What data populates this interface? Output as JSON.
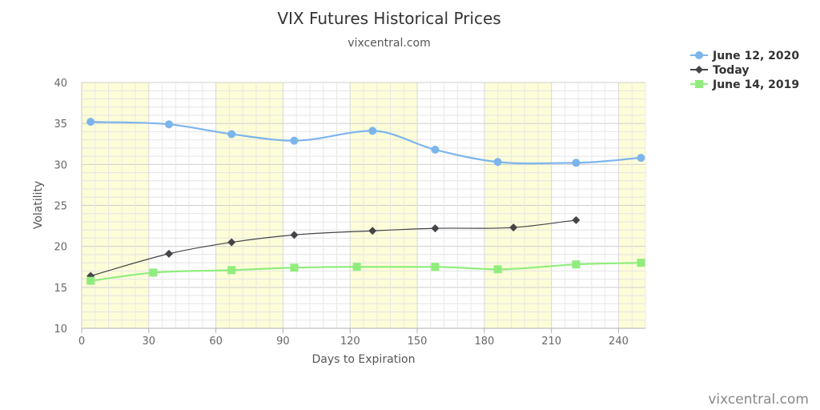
{
  "chart_data": {
    "type": "line",
    "title": "VIX Futures Historical Prices",
    "subtitle": "vixcentral.com",
    "xlabel": "Days to Expiration",
    "ylabel": "Volatility",
    "xlim": [
      0,
      252
    ],
    "ylim": [
      10,
      40
    ],
    "x_ticks": [
      0,
      30,
      60,
      90,
      120,
      150,
      180,
      210,
      240
    ],
    "y_ticks": [
      10,
      15,
      20,
      25,
      30,
      35,
      40
    ],
    "shaded_bands": [
      [
        0,
        30
      ],
      [
        60,
        90
      ],
      [
        120,
        150
      ],
      [
        180,
        210
      ],
      [
        240,
        252
      ]
    ],
    "legend_position": "top-right",
    "series": [
      {
        "name": "June 12, 2020",
        "color": "#7cb5ec",
        "marker": "circle",
        "points": [
          [
            4,
            35.2
          ],
          [
            39,
            34.9
          ],
          [
            67,
            33.7
          ],
          [
            95,
            32.9
          ],
          [
            130,
            34.1
          ],
          [
            158,
            31.8
          ],
          [
            186,
            30.3
          ],
          [
            221,
            30.2
          ],
          [
            250,
            30.8
          ]
        ]
      },
      {
        "name": "Today",
        "color": "#434348",
        "marker": "diamond",
        "points": [
          [
            4,
            16.4
          ],
          [
            39,
            19.1
          ],
          [
            67,
            20.5
          ],
          [
            95,
            21.4
          ],
          [
            130,
            21.9
          ],
          [
            158,
            22.2
          ],
          [
            193,
            22.3
          ],
          [
            221,
            23.2
          ]
        ]
      },
      {
        "name": "June 14, 2019",
        "color": "#90ed7d",
        "marker": "square",
        "points": [
          [
            4,
            15.8
          ],
          [
            32,
            16.8
          ],
          [
            67,
            17.1
          ],
          [
            95,
            17.4
          ],
          [
            123,
            17.5
          ],
          [
            158,
            17.5
          ],
          [
            186,
            17.2
          ],
          [
            221,
            17.8
          ],
          [
            250,
            18.0
          ]
        ]
      }
    ]
  },
  "credit": "vixcentral.com"
}
